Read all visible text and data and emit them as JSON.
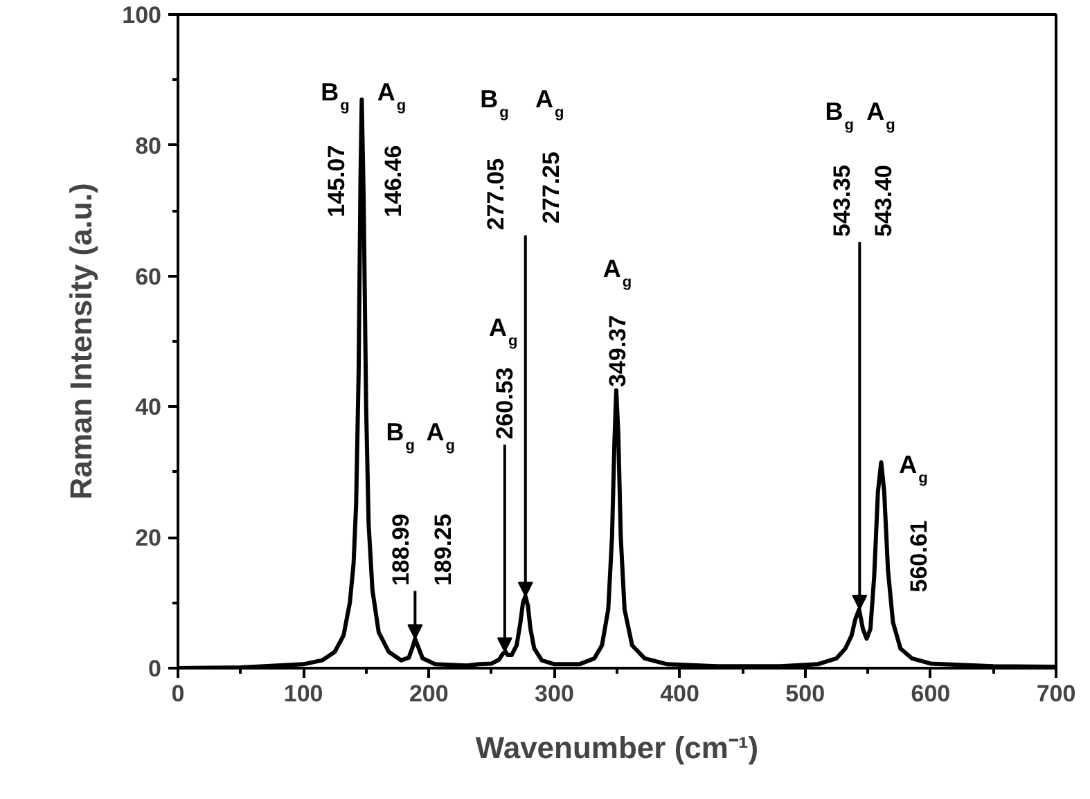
{
  "chart_data": {
    "type": "line",
    "xlabel": "Wavenumber (cm⁻¹)",
    "ylabel": "Raman Intensity (a.u.)",
    "color": "#000000",
    "grid": false,
    "xlim": [
      0,
      700
    ],
    "ylim": [
      0,
      100
    ],
    "xticks": [
      0,
      {
        "value": 50,
        "label": null
      },
      100,
      {
        "value": 150,
        "label": null
      },
      200,
      {
        "value": 250,
        "label": null
      },
      300,
      {
        "value": 350,
        "label": null
      },
      400,
      {
        "value": 450,
        "label": null
      },
      500,
      {
        "value": 550,
        "label": null
      },
      600,
      {
        "value": 650,
        "label": null
      },
      700
    ],
    "yticks": [
      0,
      {
        "value": 10,
        "label": null
      },
      20,
      {
        "value": 30,
        "label": null
      },
      40,
      {
        "value": 50,
        "label": null
      },
      60,
      {
        "value": 70,
        "label": null
      },
      80,
      {
        "value": 90,
        "label": null
      },
      100
    ],
    "x": [
      0,
      50,
      100,
      115,
      125,
      132,
      137,
      140,
      142,
      144,
      145.5,
      146.5,
      148,
      150,
      152,
      155,
      160,
      168,
      178,
      184,
      187,
      189,
      191,
      195,
      205,
      230,
      240,
      250,
      256,
      259,
      261,
      263,
      266,
      270,
      273,
      275,
      277,
      279,
      281,
      284,
      290,
      300,
      320,
      332,
      338,
      343,
      346,
      348,
      349.4,
      351,
      353,
      356,
      362,
      372,
      390,
      430,
      480,
      510,
      525,
      532,
      537,
      540,
      543,
      546,
      549,
      552,
      555,
      558,
      560.6,
      563,
      566,
      570,
      576,
      585,
      600,
      650,
      700
    ],
    "values": [
      0,
      0.1,
      0.6,
      1.2,
      2.5,
      5,
      10,
      16,
      25,
      45,
      75,
      87,
      72,
      40,
      22,
      12,
      5.5,
      2.5,
      1.2,
      1.6,
      3.2,
      4.5,
      3.5,
      1.5,
      0.6,
      0.4,
      0.6,
      0.7,
      1.3,
      2.2,
      2.5,
      2.0,
      2.0,
      3.5,
      7,
      10,
      11,
      9.5,
      6,
      3,
      1.2,
      0.6,
      0.6,
      1.5,
      3.5,
      9,
      20,
      35,
      42.5,
      36,
      20,
      9,
      3.5,
      1.5,
      0.6,
      0.3,
      0.3,
      0.6,
      1.5,
      3,
      5,
      7.5,
      9,
      6,
      4.5,
      6,
      14,
      27,
      31.5,
      27,
      15,
      7,
      3,
      1.5,
      0.7,
      0.3,
      0.2
    ],
    "annotations": [
      "B$_{g}$",
      "145.07",
      "A$_{g}$",
      "146.46",
      "B$_{g}$",
      {
        "text": "188.99",
        "x": 189,
        "y": 4.5
      },
      "A$_{g}$",
      {
        "text": "189.25",
        "x": 189,
        "y": 4.5
      },
      "A$_{g}$",
      {
        "text": "260.53",
        "x": 260.5,
        "y": 2.5
      },
      "B$_{g}$",
      {
        "text": "277.05",
        "x": 277,
        "y": 11
      },
      "A$_{g}$",
      {
        "text": "277.25",
        "x": 277,
        "y": 11
      },
      "A$_{g}$",
      "349.37",
      "B$_{g}$",
      {
        "text": "543.35",
        "x": 543.4,
        "y": 9
      },
      "A$_{g}$",
      {
        "text": "543.40",
        "x": 543.4,
        "y": 9
      },
      "A$_{g}$",
      "560.61"
    ]
  }
}
